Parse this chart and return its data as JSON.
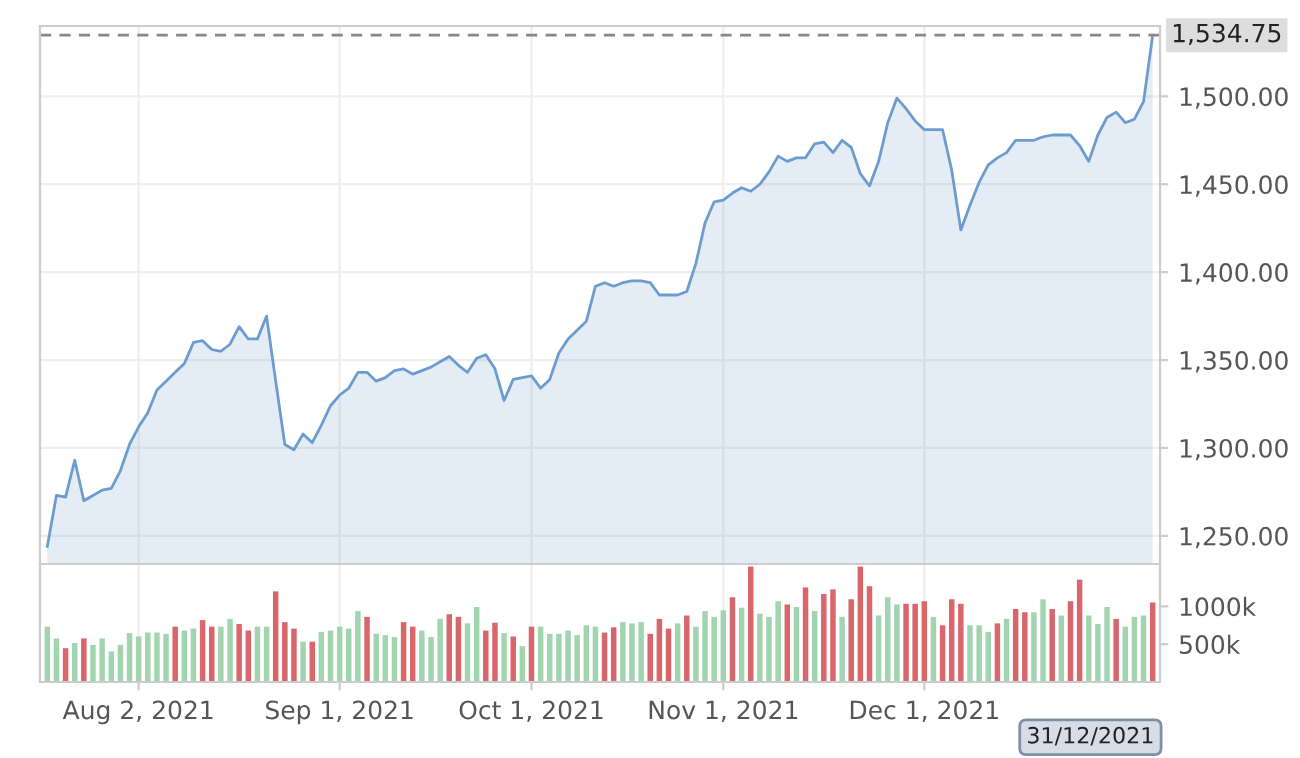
{
  "chart_data": [
    {
      "type": "area",
      "categories": [
        null,
        null,
        null,
        null,
        null,
        null,
        null,
        null,
        null,
        null,
        null,
        null,
        null,
        null,
        null,
        null,
        null,
        null,
        null,
        null,
        null,
        null,
        null,
        null,
        null,
        null,
        null,
        null,
        null,
        null,
        null,
        null,
        null,
        null,
        null,
        null,
        null,
        null,
        null,
        null,
        null,
        null,
        null,
        null,
        null,
        null,
        null,
        null,
        null,
        null,
        null,
        null,
        null,
        null,
        null,
        null,
        null,
        null,
        null,
        null,
        null,
        null,
        null,
        null,
        null,
        null,
        null,
        null,
        null,
        null,
        null,
        null,
        null,
        null,
        null,
        null,
        null,
        null,
        null,
        null,
        null,
        null,
        null,
        null,
        null,
        null,
        null,
        null,
        null,
        null,
        null,
        null,
        null,
        null,
        null,
        null,
        null,
        null,
        null,
        null,
        null,
        null,
        null,
        null,
        null,
        null,
        null,
        null,
        null,
        null,
        null,
        null,
        null,
        null,
        null,
        null,
        null,
        null,
        null,
        null,
        null,
        null
      ],
      "series": [
        {
          "color": "#6c9ccf",
          "values": [
            1244,
            1273,
            1272,
            1293,
            1270,
            1273,
            1276,
            1277,
            1287,
            1302,
            1312,
            1320,
            1333,
            1338,
            1343,
            1348,
            1360,
            1361,
            1356,
            1355,
            1359,
            1369,
            1362,
            1362,
            1375,
            1338,
            1302,
            1299,
            1308,
            1303,
            1313,
            1324,
            1330,
            1334,
            1343,
            1343,
            1338,
            1340,
            1344,
            1345,
            1342,
            1344,
            1346,
            1349,
            1352,
            1347,
            1343,
            1351,
            1353,
            1345,
            1327,
            1339,
            1340,
            1341,
            1334,
            1339,
            1354,
            1362,
            1367,
            1372,
            1392,
            1394,
            1392,
            1394,
            1395,
            1395,
            1394,
            1387,
            1387,
            1387,
            1389,
            1405,
            1428,
            1440,
            1441,
            1445,
            1448,
            1446,
            1450,
            1457,
            1466,
            1463,
            1465,
            1465,
            1473,
            1474,
            1468,
            1475,
            1471,
            1456,
            1449,
            1463,
            1485,
            1499,
            1493,
            1486,
            1481,
            1481,
            1481,
            1458,
            1424,
            1438,
            1451,
            1461,
            1465,
            1468,
            1475,
            1475,
            1475,
            1477,
            1478,
            1478,
            1478,
            1472,
            1463,
            1478,
            1488,
            1491,
            1485,
            1487,
            1497,
            1534.75
          ]
        }
      ],
      "ylim": [
        1234,
        1540
      ],
      "yticks": [
        {
          "value": 1250,
          "label": "1,250.00"
        },
        {
          "value": 1300,
          "label": "1,300.00"
        },
        {
          "value": 1350,
          "label": "1,350.00"
        },
        {
          "value": 1400,
          "label": "1,400.00"
        },
        {
          "value": 1450,
          "label": "1,450.00"
        },
        {
          "value": 1500,
          "label": "1,500.00"
        }
      ],
      "ref_lines": [
        {
          "axis": "y",
          "value": 1534.75,
          "label": "1,534.75",
          "color": "#888888",
          "line_style": "dashed"
        }
      ],
      "grid": true,
      "tick_labels": "y"
    },
    {
      "type": "bar",
      "categories": [
        null,
        null,
        null,
        null,
        null,
        null,
        null,
        null,
        null,
        null,
        "Aug 2, 2021",
        null,
        null,
        null,
        null,
        null,
        null,
        null,
        null,
        null,
        null,
        null,
        null,
        null,
        null,
        null,
        null,
        null,
        null,
        null,
        null,
        null,
        "Sep 1, 2021",
        null,
        null,
        null,
        null,
        null,
        null,
        null,
        null,
        null,
        null,
        null,
        null,
        null,
        null,
        null,
        null,
        null,
        null,
        null,
        null,
        "Oct 1, 2021",
        null,
        null,
        null,
        null,
        null,
        null,
        null,
        null,
        null,
        null,
        null,
        null,
        null,
        null,
        null,
        null,
        null,
        null,
        null,
        null,
        "Nov 1, 2021",
        null,
        null,
        null,
        null,
        null,
        null,
        null,
        null,
        null,
        null,
        null,
        null,
        null,
        null,
        null,
        null,
        null,
        null,
        null,
        null,
        null,
        "Dec 1, 2021",
        null,
        null,
        null,
        null,
        null,
        null,
        null,
        null,
        null,
        null,
        null,
        null,
        null,
        null,
        null,
        null,
        null,
        null,
        null,
        null,
        null,
        null,
        null,
        null,
        null
      ],
      "values": [
        732,
        576,
        447,
        516,
        576,
        490,
        576,
        404,
        490,
        646,
        602,
        654,
        654,
        637,
        732,
        680,
        706,
        818,
        732,
        732,
        835,
        766,
        680,
        732,
        732,
        1198,
        792,
        706,
        533,
        533,
        663,
        680,
        732,
        706,
        939,
        861,
        637,
        620,
        594,
        792,
        732,
        680,
        594,
        835,
        896,
        861,
        775,
        991,
        680,
        784,
        646,
        602,
        474,
        732,
        732,
        637,
        637,
        680,
        620,
        749,
        732,
        654,
        723,
        792,
        775,
        792,
        637,
        835,
        706,
        775,
        879,
        732,
        939,
        861,
        948,
        1120,
        982,
        1526,
        904,
        861,
        1068,
        1025,
        991,
        1250,
        939,
        1163,
        1224,
        861,
        1094,
        1526,
        1267,
        879,
        1120,
        1025,
        1034,
        1034,
        1068,
        861,
        749,
        1094,
        1034,
        749,
        749,
        663,
        775,
        835,
        965,
        922,
        922,
        1094,
        965,
        879,
        1068,
        1353,
        879,
        766,
        991,
        835,
        732,
        861,
        879,
        1051
      ],
      "colors": [
        "#a3d4b0",
        "#a3d4b0",
        "#d9666b",
        "#a3d4b0",
        "#d9666b",
        "#a3d4b0",
        "#a3d4b0",
        "#a3d4b0",
        "#a3d4b0",
        "#a3d4b0",
        "#a3d4b0",
        "#a3d4b0",
        "#a3d4b0",
        "#a3d4b0",
        "#d9666b",
        "#a3d4b0",
        "#a3d4b0",
        "#d9666b",
        "#d9666b",
        "#a3d4b0",
        "#a3d4b0",
        "#d9666b",
        "#d9666b",
        "#a3d4b0",
        "#a3d4b0",
        "#d9666b",
        "#d9666b",
        "#d9666b",
        "#a3d4b0",
        "#d9666b",
        "#a3d4b0",
        "#a3d4b0",
        "#a3d4b0",
        "#a3d4b0",
        "#a3d4b0",
        "#d9666b",
        "#a3d4b0",
        "#a3d4b0",
        "#a3d4b0",
        "#d9666b",
        "#d9666b",
        "#a3d4b0",
        "#a3d4b0",
        "#a3d4b0",
        "#d9666b",
        "#d9666b",
        "#a3d4b0",
        "#a3d4b0",
        "#d9666b",
        "#d9666b",
        "#a3d4b0",
        "#d9666b",
        "#a3d4b0",
        "#d9666b",
        "#a3d4b0",
        "#a3d4b0",
        "#a3d4b0",
        "#a3d4b0",
        "#a3d4b0",
        "#a3d4b0",
        "#a3d4b0",
        "#d9666b",
        "#d9666b",
        "#a3d4b0",
        "#a3d4b0",
        "#a3d4b0",
        "#d9666b",
        "#d9666b",
        "#d9666b",
        "#a3d4b0",
        "#d9666b",
        "#a3d4b0",
        "#a3d4b0",
        "#a3d4b0",
        "#a3d4b0",
        "#d9666b",
        "#a3d4b0",
        "#d9666b",
        "#a3d4b0",
        "#a3d4b0",
        "#a3d4b0",
        "#d9666b",
        "#a3d4b0",
        "#d9666b",
        "#a3d4b0",
        "#d9666b",
        "#d9666b",
        "#a3d4b0",
        "#d9666b",
        "#d9666b",
        "#d9666b",
        "#a3d4b0",
        "#a3d4b0",
        "#a3d4b0",
        "#d9666b",
        "#d9666b",
        "#d9666b",
        "#a3d4b0",
        "#d9666b",
        "#d9666b",
        "#d9666b",
        "#a3d4b0",
        "#a3d4b0",
        "#a3d4b0",
        "#d9666b",
        "#a3d4b0",
        "#d9666b",
        "#d9666b",
        "#a3d4b0",
        "#a3d4b0",
        "#d9666b",
        "#a3d4b0",
        "#d9666b",
        "#d9666b",
        "#a3d4b0",
        "#a3d4b0",
        "#a3d4b0",
        "#d9666b",
        "#a3d4b0",
        "#a3d4b0",
        "#a3d4b0",
        "#d9666b"
      ],
      "ylim": [
        0,
        1560
      ],
      "yticks": [
        {
          "value": 500,
          "label": "500k"
        },
        {
          "value": 1000,
          "label": "1000k"
        }
      ],
      "grid": "x",
      "annotations": [
        "31/12/2021"
      ]
    }
  ]
}
